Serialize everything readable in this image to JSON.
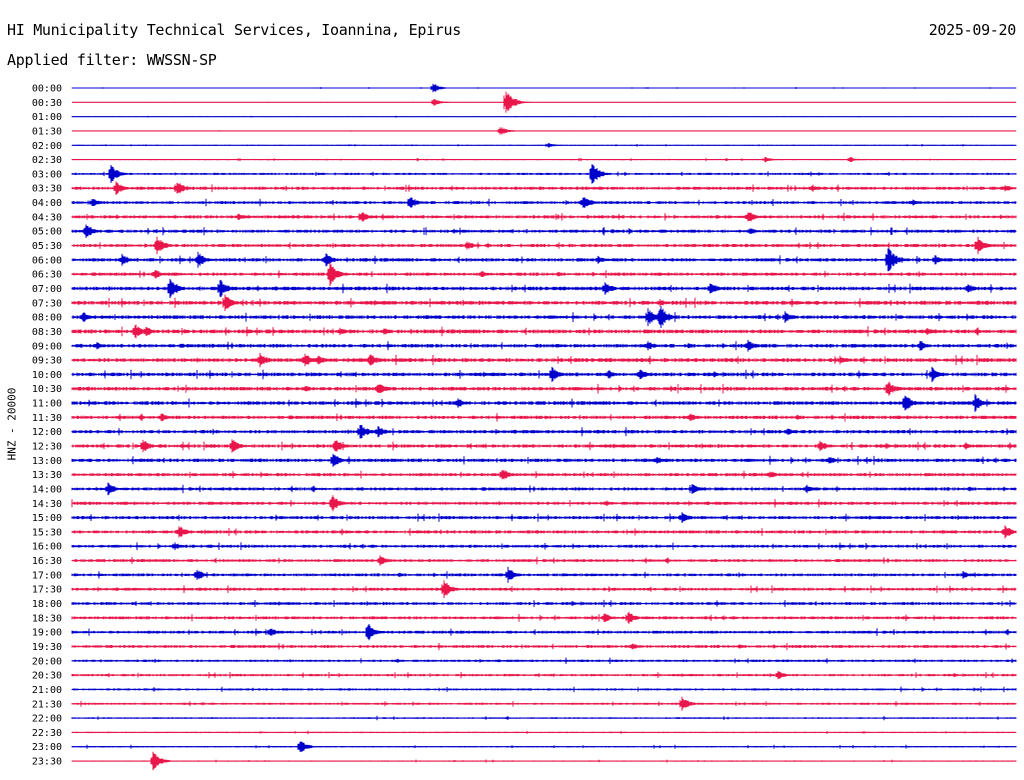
{
  "header": {
    "title": "HI Municipality Technical Services, Ioannina, Epirus",
    "date": "2025-09-20",
    "filter": "Applied filter: WWSSN-SP",
    "channel_label": "HNZ - 20000"
  },
  "colors": {
    "blue": "#0000cc",
    "red": "#e8164a"
  },
  "chart_data": {
    "type": "line",
    "xlabel": "",
    "ylabel": "HNZ - 20000",
    "ytick_labels": [
      "00:00",
      "00:30",
      "01:00",
      "01:30",
      "02:00",
      "02:30",
      "03:00",
      "03:30",
      "04:00",
      "04:30",
      "05:00",
      "05:30",
      "06:00",
      "06:30",
      "07:00",
      "07:30",
      "08:00",
      "08:30",
      "09:00",
      "09:30",
      "10:00",
      "10:30",
      "11:00",
      "11:30",
      "12:00",
      "12:30",
      "13:00",
      "13:30",
      "14:00",
      "14:30",
      "15:00",
      "15:30",
      "16:00",
      "16:30",
      "17:00",
      "17:30",
      "18:00",
      "18:30",
      "19:00",
      "19:30",
      "20:00",
      "20:30",
      "21:00",
      "21:30",
      "22:00",
      "22:30",
      "23:00",
      "23:30"
    ],
    "trace_colors": [
      "blue",
      "red"
    ],
    "noise_level": [
      0.3,
      0.2,
      0.3,
      0.2,
      0.4,
      0.5,
      0.9,
      1.3,
      1.2,
      1.3,
      1.3,
      1.3,
      1.4,
      1.3,
      1.5,
      1.6,
      1.5,
      1.6,
      1.5,
      1.6,
      1.5,
      1.5,
      1.5,
      1.4,
      1.4,
      1.4,
      1.4,
      1.3,
      1.3,
      1.3,
      1.3,
      1.3,
      1.2,
      1.2,
      1.2,
      1.2,
      1.2,
      1.2,
      1.2,
      1.2,
      1.0,
      1.0,
      0.9,
      0.9,
      0.7,
      0.6,
      0.6,
      0.5
    ],
    "events": [
      [
        [
          433,
          5
        ]
      ],
      [
        [
          434,
          4
        ],
        [
          506,
          14
        ]
      ],
      [],
      [
        [
          500,
          5
        ]
      ],
      [
        [
          548,
          3
        ]
      ],
      [
        [
          765,
          3
        ],
        [
          850,
          3
        ]
      ],
      [
        [
          111,
          10
        ],
        [
          592,
          12
        ]
      ],
      [
        [
          116,
          7
        ],
        [
          177,
          8
        ],
        [
          812,
          4
        ],
        [
          1005,
          4
        ]
      ],
      [
        [
          92,
          5
        ],
        [
          410,
          7
        ],
        [
          583,
          8
        ],
        [
          913,
          4
        ]
      ],
      [
        [
          238,
          4
        ],
        [
          362,
          6
        ],
        [
          748,
          7
        ]
      ],
      [
        [
          86,
          8
        ],
        [
          750,
          4
        ]
      ],
      [
        [
          157,
          10
        ],
        [
          467,
          5
        ],
        [
          978,
          9
        ]
      ],
      [
        [
          122,
          6
        ],
        [
          198,
          8
        ],
        [
          326,
          7
        ],
        [
          598,
          4
        ],
        [
          888,
          14
        ],
        [
          935,
          5
        ]
      ],
      [
        [
          155,
          5
        ],
        [
          330,
          12
        ],
        [
          481,
          4
        ]
      ],
      [
        [
          170,
          12
        ],
        [
          220,
          10
        ],
        [
          605,
          7
        ],
        [
          710,
          7
        ],
        [
          968,
          5
        ]
      ],
      [
        [
          225,
          10
        ],
        [
          660,
          4
        ]
      ],
      [
        [
          83,
          6
        ],
        [
          648,
          9
        ],
        [
          660,
          13
        ],
        [
          785,
          6
        ]
      ],
      [
        [
          135,
          8
        ],
        [
          146,
          6
        ],
        [
          340,
          4
        ],
        [
          384,
          4
        ],
        [
          927,
          4
        ]
      ],
      [
        [
          97,
          4
        ],
        [
          648,
          5
        ],
        [
          748,
          6
        ],
        [
          920,
          6
        ]
      ],
      [
        [
          260,
          8
        ],
        [
          305,
          7
        ],
        [
          318,
          6
        ],
        [
          370,
          7
        ],
        [
          840,
          5
        ]
      ],
      [
        [
          552,
          8
        ],
        [
          608,
          5
        ],
        [
          640,
          6
        ],
        [
          932,
          8
        ]
      ],
      [
        [
          305,
          4
        ],
        [
          378,
          7
        ],
        [
          888,
          9
        ]
      ],
      [
        [
          458,
          5
        ],
        [
          905,
          10
        ],
        [
          975,
          9
        ]
      ],
      [
        [
          161,
          5
        ],
        [
          690,
          5
        ]
      ],
      [
        [
          360,
          9
        ],
        [
          378,
          6
        ],
        [
          787,
          4
        ]
      ],
      [
        [
          143,
          7
        ],
        [
          232,
          8
        ],
        [
          335,
          8
        ],
        [
          820,
          6
        ],
        [
          965,
          4
        ]
      ],
      [
        [
          333,
          8
        ],
        [
          657,
          4
        ],
        [
          830,
          4
        ]
      ],
      [
        [
          502,
          7
        ],
        [
          770,
          4
        ]
      ],
      [
        [
          108,
          7
        ],
        [
          692,
          6
        ],
        [
          806,
          5
        ]
      ],
      [
        [
          332,
          10
        ]
      ],
      [
        [
          682,
          6
        ]
      ],
      [
        [
          179,
          7
        ],
        [
          1005,
          7
        ]
      ],
      [
        [
          175,
          4
        ]
      ],
      [
        [
          380,
          6
        ]
      ],
      [
        [
          197,
          6
        ],
        [
          508,
          8
        ],
        [
          963,
          4
        ]
      ],
      [
        [
          444,
          10
        ]
      ],
      [],
      [
        [
          604,
          5
        ],
        [
          628,
          7
        ]
      ],
      [
        [
          270,
          5
        ],
        [
          368,
          10
        ]
      ],
      [
        [
          632,
          4
        ]
      ],
      [],
      [
        [
          778,
          5
        ]
      ],
      [],
      [
        [
          682,
          8
        ]
      ],
      [],
      [],
      [
        [
          300,
          7
        ]
      ],
      [
        [
          153,
          10
        ]
      ]
    ]
  }
}
